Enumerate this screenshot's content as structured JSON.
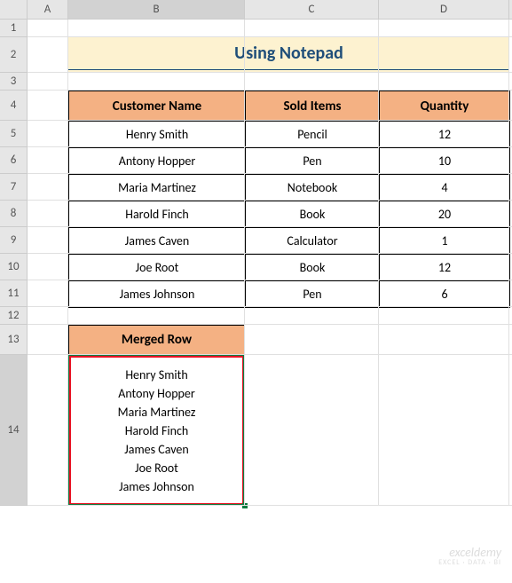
{
  "columns": [
    "A",
    "B",
    "C",
    "D"
  ],
  "col_widths": {
    "A": 46,
    "B": 199,
    "C": 151,
    "D": 147
  },
  "row_count": 14,
  "row_heights": {
    "1": 20,
    "2": 40,
    "3": 20,
    "4": 34,
    "5": 30,
    "6": 30,
    "7": 30,
    "8": 30,
    "9": 30,
    "10": 30,
    "11": 30,
    "12": 20,
    "13": 34,
    "14": 170
  },
  "title": "Using Notepad",
  "table": {
    "headers": [
      "Customer Name",
      "Sold Items",
      "Quantity"
    ],
    "rows": [
      [
        "Henry Smith",
        "Pencil",
        "12"
      ],
      [
        "Antony Hopper",
        "Pen",
        "10"
      ],
      [
        "Maria Martinez",
        "Notebook",
        "4"
      ],
      [
        "Harold Finch",
        "Book",
        "20"
      ],
      [
        "James Caven",
        "Calculator",
        "1"
      ],
      [
        "Joe Root",
        "Book",
        "12"
      ],
      [
        "James Johnson",
        "Pen",
        "6"
      ]
    ]
  },
  "merged": {
    "header": "Merged Row",
    "lines": [
      "Henry Smith",
      "Antony Hopper",
      "Maria Martinez",
      "Harold Finch",
      "James Caven",
      "Joe Root",
      "James Johnson"
    ]
  },
  "selected_col": "B",
  "selected_row": "14",
  "colors": {
    "title_bg": "#fdf2d0",
    "title_text": "#1f4e79",
    "header_bg": "#f4b183",
    "border": "#000000",
    "highlight": "#e81123",
    "selection": "#107c41"
  },
  "watermark": {
    "main": "exceldemy",
    "sub": "EXCEL · DATA · BI"
  }
}
